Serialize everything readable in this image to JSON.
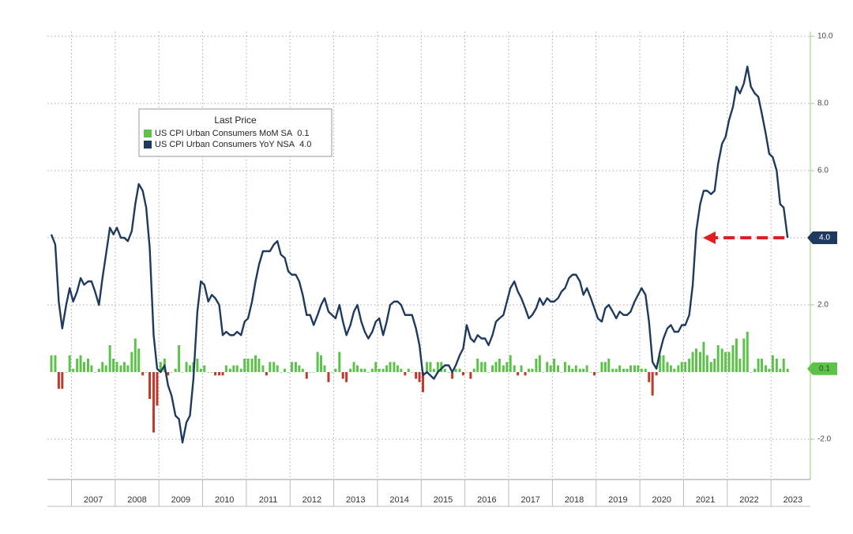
{
  "chart_data": {
    "type": "line_bar",
    "legend_title": "Last Price",
    "xlim": [
      2006.45,
      2023.9
    ],
    "xticks": [
      2007,
      2008,
      2009,
      2010,
      2011,
      2012,
      2013,
      2014,
      2015,
      2016,
      2017,
      2018,
      2019,
      2020,
      2021,
      2022,
      2023
    ],
    "ylim": [
      -3.2,
      10
    ],
    "yticks": [
      {
        "value": 10,
        "label": "10.0"
      },
      {
        "value": 8,
        "label": "8.0"
      },
      {
        "value": 6,
        "label": "6.0"
      },
      {
        "value": 4,
        "label": "4.0"
      },
      {
        "value": 2,
        "label": "2.0"
      },
      {
        "value": -2,
        "label": "-2.0"
      }
    ],
    "grid": true,
    "x": [
      2006.54,
      2006.63,
      2006.71,
      2006.79,
      2006.88,
      2006.96,
      2007.04,
      2007.13,
      2007.21,
      2007.29,
      2007.38,
      2007.46,
      2007.54,
      2007.63,
      2007.71,
      2007.79,
      2007.88,
      2007.96,
      2008.04,
      2008.13,
      2008.21,
      2008.29,
      2008.38,
      2008.46,
      2008.54,
      2008.63,
      2008.71,
      2008.79,
      2008.88,
      2008.96,
      2009.04,
      2009.13,
      2009.21,
      2009.29,
      2009.38,
      2009.46,
      2009.54,
      2009.63,
      2009.71,
      2009.79,
      2009.88,
      2009.96,
      2010.04,
      2010.13,
      2010.21,
      2010.29,
      2010.38,
      2010.46,
      2010.54,
      2010.63,
      2010.71,
      2010.79,
      2010.88,
      2010.96,
      2011.04,
      2011.13,
      2011.21,
      2011.29,
      2011.38,
      2011.46,
      2011.54,
      2011.63,
      2011.71,
      2011.79,
      2011.88,
      2011.96,
      2012.04,
      2012.13,
      2012.21,
      2012.29,
      2012.38,
      2012.46,
      2012.54,
      2012.63,
      2012.71,
      2012.79,
      2012.88,
      2012.96,
      2013.04,
      2013.13,
      2013.21,
      2013.29,
      2013.38,
      2013.46,
      2013.54,
      2013.63,
      2013.71,
      2013.79,
      2013.88,
      2013.96,
      2014.04,
      2014.13,
      2014.21,
      2014.29,
      2014.38,
      2014.46,
      2014.54,
      2014.63,
      2014.71,
      2014.79,
      2014.88,
      2014.96,
      2015.04,
      2015.13,
      2015.21,
      2015.29,
      2015.38,
      2015.46,
      2015.54,
      2015.63,
      2015.71,
      2015.79,
      2015.88,
      2015.96,
      2016.04,
      2016.13,
      2016.21,
      2016.29,
      2016.38,
      2016.46,
      2016.54,
      2016.63,
      2016.71,
      2016.79,
      2016.88,
      2016.96,
      2017.04,
      2017.13,
      2017.21,
      2017.29,
      2017.38,
      2017.46,
      2017.54,
      2017.63,
      2017.71,
      2017.79,
      2017.88,
      2017.96,
      2018.04,
      2018.13,
      2018.21,
      2018.29,
      2018.38,
      2018.46,
      2018.54,
      2018.63,
      2018.71,
      2018.79,
      2018.88,
      2018.96,
      2019.04,
      2019.13,
      2019.21,
      2019.29,
      2019.38,
      2019.46,
      2019.54,
      2019.63,
      2019.71,
      2019.79,
      2019.88,
      2019.96,
      2020.04,
      2020.13,
      2020.21,
      2020.29,
      2020.38,
      2020.46,
      2020.54,
      2020.63,
      2020.71,
      2020.79,
      2020.88,
      2020.96,
      2021.04,
      2021.13,
      2021.21,
      2021.29,
      2021.38,
      2021.46,
      2021.54,
      2021.63,
      2021.71,
      2021.79,
      2021.88,
      2021.96,
      2022.04,
      2022.13,
      2022.21,
      2022.29,
      2022.38,
      2022.46,
      2022.54,
      2022.63,
      2022.71,
      2022.79,
      2022.88,
      2022.96,
      2023.04,
      2023.13,
      2023.21,
      2023.29,
      2023.38
    ],
    "series": [
      {
        "name": "US CPI Urban Consumers MoM SA",
        "kind": "bar",
        "color": "#5cc24a",
        "negative_color": "#c0392b",
        "last_label": "0.1",
        "values": [
          0.5,
          0.5,
          -0.5,
          -0.5,
          0.0,
          0.5,
          0.1,
          0.4,
          0.5,
          0.3,
          0.4,
          0.2,
          0.0,
          0.1,
          0.3,
          0.2,
          0.8,
          0.4,
          0.3,
          0.2,
          0.3,
          0.2,
          0.6,
          1.0,
          0.7,
          -0.1,
          0.0,
          -0.8,
          -1.8,
          -1.0,
          0.3,
          0.4,
          -0.1,
          0.0,
          0.1,
          0.8,
          0.0,
          0.3,
          0.2,
          0.3,
          0.4,
          0.1,
          0.2,
          0.0,
          0.0,
          -0.1,
          -0.1,
          -0.1,
          0.2,
          0.1,
          0.2,
          0.2,
          0.1,
          0.4,
          0.4,
          0.4,
          0.5,
          0.4,
          0.2,
          -0.1,
          0.3,
          0.3,
          0.2,
          0.0,
          0.1,
          0.0,
          0.3,
          0.3,
          0.2,
          0.1,
          -0.2,
          0.0,
          0.0,
          0.6,
          0.5,
          0.2,
          -0.3,
          0.0,
          0.1,
          0.6,
          -0.2,
          -0.3,
          0.1,
          0.3,
          0.2,
          0.1,
          0.1,
          0.0,
          0.1,
          0.3,
          0.1,
          0.1,
          0.2,
          0.3,
          0.3,
          0.2,
          0.1,
          -0.1,
          0.1,
          0.0,
          -0.2,
          -0.3,
          -0.6,
          0.3,
          0.3,
          0.1,
          0.3,
          0.3,
          0.1,
          0.0,
          -0.2,
          0.1,
          0.1,
          -0.1,
          0.0,
          -0.2,
          0.1,
          0.4,
          0.3,
          0.3,
          0.0,
          0.2,
          0.3,
          0.4,
          0.2,
          0.3,
          0.5,
          0.2,
          -0.1,
          0.2,
          -0.1,
          0.1,
          0.1,
          0.4,
          0.5,
          0.0,
          0.3,
          0.2,
          0.4,
          0.2,
          0.0,
          0.3,
          0.2,
          0.1,
          0.2,
          0.1,
          0.1,
          0.2,
          0.0,
          -0.1,
          0.0,
          0.3,
          0.3,
          0.4,
          0.1,
          0.1,
          0.2,
          0.1,
          0.1,
          0.2,
          0.2,
          0.2,
          0.1,
          0.1,
          -0.3,
          -0.7,
          -0.1,
          0.5,
          0.5,
          0.3,
          0.2,
          0.1,
          0.2,
          0.3,
          0.3,
          0.4,
          0.6,
          0.7,
          0.6,
          0.9,
          0.5,
          0.3,
          0.4,
          0.8,
          0.7,
          0.6,
          0.6,
          0.8,
          1.0,
          0.4,
          1.0,
          1.2,
          0.0,
          0.1,
          0.4,
          0.4,
          0.2,
          0.1,
          0.5,
          0.4,
          0.1,
          0.4,
          0.1
        ]
      },
      {
        "name": "US CPI Urban Consumers YoY NSA",
        "kind": "line",
        "color": "#1f3a5f",
        "last_label": "4.0",
        "values": [
          4.1,
          3.8,
          2.1,
          1.3,
          2.0,
          2.5,
          2.1,
          2.4,
          2.8,
          2.6,
          2.7,
          2.7,
          2.4,
          2.0,
          2.8,
          3.5,
          4.3,
          4.1,
          4.3,
          4.0,
          4.0,
          3.9,
          4.2,
          5.0,
          5.6,
          5.4,
          4.9,
          3.7,
          1.1,
          0.1,
          0.0,
          0.2,
          -0.4,
          -0.7,
          -1.3,
          -1.4,
          -2.1,
          -1.5,
          -1.3,
          -0.2,
          1.8,
          2.7,
          2.6,
          2.1,
          2.3,
          2.2,
          2.0,
          1.1,
          1.2,
          1.1,
          1.1,
          1.2,
          1.1,
          1.5,
          1.6,
          2.1,
          2.7,
          3.2,
          3.6,
          3.6,
          3.6,
          3.8,
          3.9,
          3.5,
          3.4,
          3.0,
          2.9,
          2.9,
          2.7,
          2.3,
          1.7,
          1.7,
          1.4,
          1.7,
          2.0,
          2.2,
          1.8,
          1.7,
          1.6,
          2.0,
          1.5,
          1.1,
          1.4,
          1.8,
          2.0,
          1.5,
          1.2,
          1.0,
          1.2,
          1.5,
          1.6,
          1.1,
          1.5,
          2.0,
          2.1,
          2.1,
          2.0,
          1.7,
          1.7,
          1.7,
          1.3,
          0.8,
          -0.1,
          0.0,
          -0.1,
          -0.2,
          0.0,
          0.1,
          0.2,
          0.2,
          0.0,
          0.2,
          0.5,
          0.7,
          1.4,
          1.0,
          0.9,
          1.1,
          1.0,
          1.0,
          0.8,
          1.1,
          1.5,
          1.6,
          1.7,
          2.1,
          2.5,
          2.7,
          2.4,
          2.2,
          1.9,
          1.6,
          1.7,
          1.9,
          2.2,
          2.0,
          2.2,
          2.1,
          2.1,
          2.2,
          2.4,
          2.5,
          2.8,
          2.9,
          2.9,
          2.7,
          2.3,
          2.5,
          2.2,
          1.9,
          1.6,
          1.5,
          1.9,
          2.0,
          1.8,
          1.6,
          1.8,
          1.7,
          1.7,
          1.8,
          2.1,
          2.3,
          2.5,
          2.3,
          1.5,
          0.3,
          0.1,
          0.6,
          1.0,
          1.3,
          1.4,
          1.2,
          1.2,
          1.4,
          1.4,
          1.7,
          2.6,
          4.2,
          5.0,
          5.4,
          5.4,
          5.3,
          5.4,
          6.2,
          6.8,
          7.0,
          7.5,
          7.9,
          8.5,
          8.3,
          8.6,
          9.1,
          8.5,
          8.3,
          8.2,
          7.7,
          7.1,
          6.5,
          6.4,
          6.0,
          5.0,
          4.9,
          4.0
        ]
      }
    ]
  }
}
